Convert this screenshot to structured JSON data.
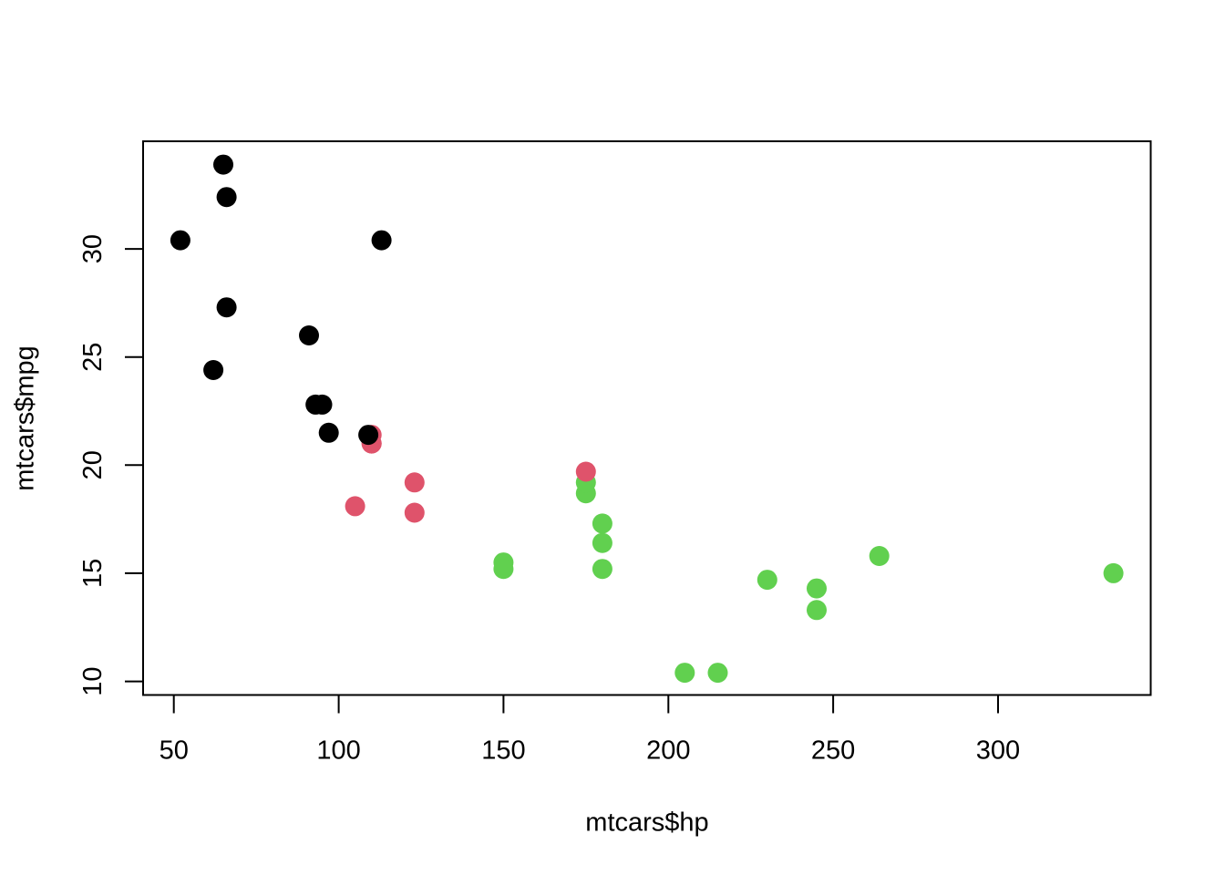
{
  "figure": {
    "background": "#ffffff",
    "foreground": "#000000"
  },
  "chart_data": {
    "type": "scatter",
    "title": "",
    "xlabel": "mtcars$hp",
    "ylabel": "mtcars$mpg",
    "xlim": [
      40.68,
      346.32
    ],
    "ylim": [
      9.37,
      34.98
    ],
    "x_ticks": [
      50,
      100,
      150,
      200,
      250,
      300
    ],
    "y_ticks": [
      10,
      15,
      20,
      25,
      30
    ],
    "grid": false,
    "legend": "none",
    "marker": {
      "shape": "filled-circle",
      "radius_px": 11
    },
    "point_colors": {
      "black": "#000000",
      "pink": "#DF536B",
      "green": "#61D04F"
    },
    "points": [
      {
        "x": 110,
        "y": 21.0,
        "c": "pink"
      },
      {
        "x": 110,
        "y": 21.0,
        "c": "pink"
      },
      {
        "x": 93,
        "y": 22.8,
        "c": "black"
      },
      {
        "x": 110,
        "y": 21.4,
        "c": "pink"
      },
      {
        "x": 175,
        "y": 18.7,
        "c": "green"
      },
      {
        "x": 105,
        "y": 18.1,
        "c": "pink"
      },
      {
        "x": 245,
        "y": 14.3,
        "c": "green"
      },
      {
        "x": 62,
        "y": 24.4,
        "c": "black"
      },
      {
        "x": 95,
        "y": 22.8,
        "c": "black"
      },
      {
        "x": 123,
        "y": 19.2,
        "c": "pink"
      },
      {
        "x": 123,
        "y": 17.8,
        "c": "pink"
      },
      {
        "x": 180,
        "y": 16.4,
        "c": "green"
      },
      {
        "x": 180,
        "y": 17.3,
        "c": "green"
      },
      {
        "x": 180,
        "y": 15.2,
        "c": "green"
      },
      {
        "x": 205,
        "y": 10.4,
        "c": "green"
      },
      {
        "x": 215,
        "y": 10.4,
        "c": "green"
      },
      {
        "x": 230,
        "y": 14.7,
        "c": "green"
      },
      {
        "x": 66,
        "y": 32.4,
        "c": "black"
      },
      {
        "x": 52,
        "y": 30.4,
        "c": "black"
      },
      {
        "x": 65,
        "y": 33.9,
        "c": "black"
      },
      {
        "x": 97,
        "y": 21.5,
        "c": "black"
      },
      {
        "x": 150,
        "y": 15.5,
        "c": "green"
      },
      {
        "x": 150,
        "y": 15.2,
        "c": "green"
      },
      {
        "x": 245,
        "y": 13.3,
        "c": "green"
      },
      {
        "x": 175,
        "y": 19.2,
        "c": "green"
      },
      {
        "x": 66,
        "y": 27.3,
        "c": "black"
      },
      {
        "x": 91,
        "y": 26.0,
        "c": "black"
      },
      {
        "x": 113,
        "y": 30.4,
        "c": "black"
      },
      {
        "x": 264,
        "y": 15.8,
        "c": "green"
      },
      {
        "x": 175,
        "y": 19.7,
        "c": "pink"
      },
      {
        "x": 335,
        "y": 15.0,
        "c": "green"
      },
      {
        "x": 109,
        "y": 21.4,
        "c": "black"
      }
    ]
  }
}
